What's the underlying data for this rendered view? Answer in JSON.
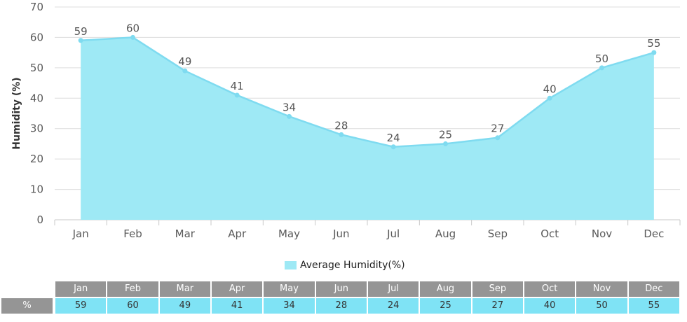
{
  "chart_data": {
    "type": "area",
    "categories": [
      "Jan",
      "Feb",
      "Mar",
      "Apr",
      "May",
      "Jun",
      "Jul",
      "Aug",
      "Sep",
      "Oct",
      "Nov",
      "Dec"
    ],
    "series": [
      {
        "name": "Average Humidity(%)",
        "values": [
          59,
          60,
          49,
          41,
          34,
          28,
          24,
          25,
          27,
          40,
          50,
          55
        ]
      }
    ],
    "ylabel": "Humidity (%)",
    "xlabel": "",
    "ylim": [
      0,
      70
    ],
    "yticks": [
      0,
      10,
      20,
      30,
      40,
      50,
      60,
      70
    ],
    "grid": true,
    "legend_position": "bottom-center",
    "colors": {
      "fill": "#9ee9f5",
      "line": "#7fdbf0",
      "header": "#959595",
      "cell": "#7fe3f5",
      "row_label": "#959595"
    }
  },
  "table": {
    "row_label": "%"
  }
}
